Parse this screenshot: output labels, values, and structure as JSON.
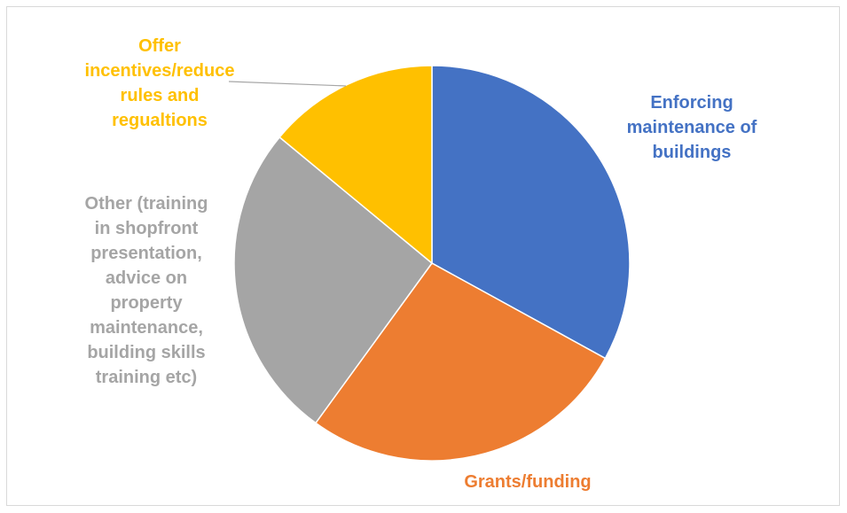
{
  "chart_data": {
    "type": "pie",
    "title": "",
    "slices": [
      {
        "label": "Enforcing maintenance of buildings",
        "value": 33,
        "color": "#4472C4"
      },
      {
        "label": "Grants/funding",
        "value": 27,
        "color": "#ED7D31"
      },
      {
        "label": "Other (training in shopfront presentation, advice on property maintenance, building skills training etc)",
        "value": 26,
        "color": "#A5A5A5"
      },
      {
        "label": "Offer incentives/reduce rules and regualtions",
        "value": 14,
        "color": "#FFC000"
      }
    ],
    "legend": "none",
    "data_labels": "category names outside"
  },
  "labels": {
    "enforcing": "Enforcing\nmaintenance of\nbuildings",
    "grants": "Grants/funding",
    "other": "Other (training\nin shopfront\npresentation,\nadvice on\nproperty\nmaintenance,\nbuilding skills\ntraining etc)",
    "offer": "Offer\nincentives/reduce\nrules and\nregualtions"
  }
}
